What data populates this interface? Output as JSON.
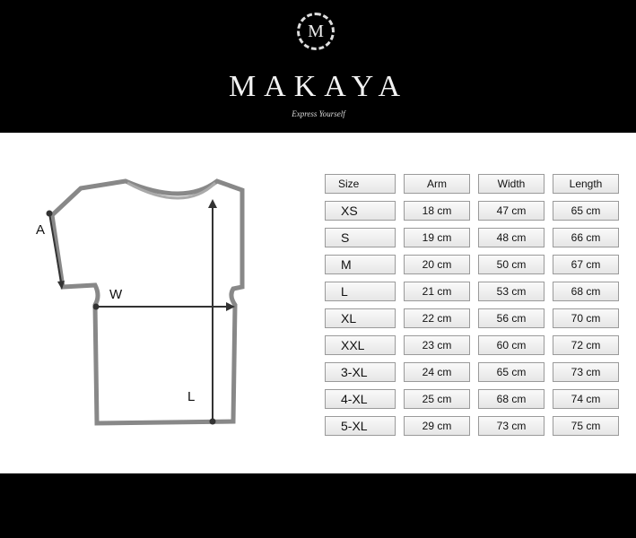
{
  "brand": {
    "emblem_letter": "M",
    "name": "MAKAYA",
    "tagline": "Express Yourself"
  },
  "diagram": {
    "arm_label": "A",
    "width_label": "W",
    "length_label": "L"
  },
  "table": {
    "headers": [
      "Size",
      "Arm",
      "Width",
      "Length"
    ],
    "rows": [
      [
        "XS",
        "18 cm",
        "47 cm",
        "65 cm"
      ],
      [
        "S",
        "19 cm",
        "48 cm",
        "66 cm"
      ],
      [
        "M",
        "20 cm",
        "50 cm",
        "67 cm"
      ],
      [
        "L",
        "21 cm",
        "53 cm",
        "68 cm"
      ],
      [
        "XL",
        "22 cm",
        "56 cm",
        "70 cm"
      ],
      [
        "XXL",
        "23 cm",
        "60 cm",
        "72 cm"
      ],
      [
        "3-XL",
        "24 cm",
        "65 cm",
        "73 cm"
      ],
      [
        "4-XL",
        "25 cm",
        "68 cm",
        "74 cm"
      ],
      [
        "5-XL",
        "29 cm",
        "73 cm",
        "75 cm"
      ]
    ]
  }
}
